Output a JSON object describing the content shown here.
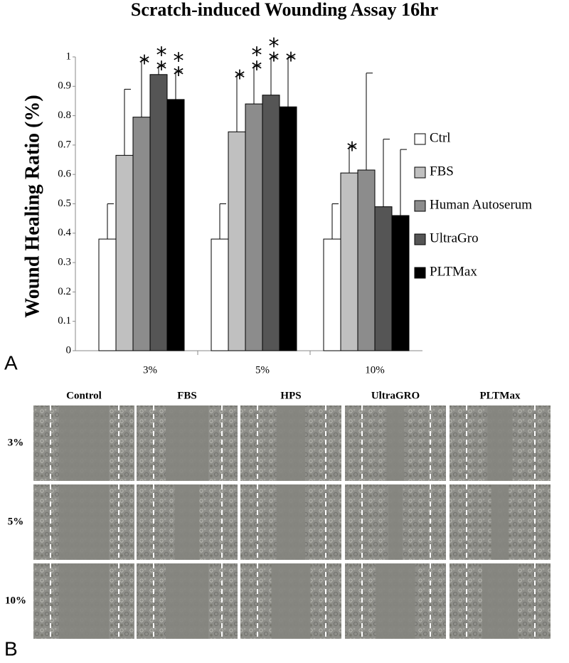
{
  "chart_data": {
    "type": "bar",
    "title": "Scratch-induced Wounding Assay 16hr",
    "y_label": "Wound Healing Ratio (%)",
    "categories": [
      "3%",
      "5%",
      "10%"
    ],
    "series": [
      {
        "name": "Ctrl",
        "color": "#ffffff",
        "values": [
          0.38,
          0.38,
          0.38
        ],
        "errors": [
          0.12,
          0.12,
          0.12
        ],
        "significance": [
          null,
          null,
          null
        ]
      },
      {
        "name": "FBS",
        "color": "#c0c0c0",
        "values": [
          0.665,
          0.745,
          0.605
        ],
        "errors": [
          0.225,
          0.195,
          0.09
        ],
        "significance": [
          null,
          "*",
          "*"
        ]
      },
      {
        "name": "Human Autoserum",
        "color": "#8c8c8c",
        "values": [
          0.795,
          0.84,
          0.615
        ],
        "errors": [
          0.195,
          0.13,
          0.33
        ],
        "significance": [
          "*",
          "**",
          null
        ]
      },
      {
        "name": "UltraGro",
        "color": "#555555",
        "values": [
          0.94,
          0.87,
          0.49
        ],
        "errors": [
          0.03,
          0.13,
          0.23
        ],
        "significance": [
          "**",
          "**",
          null
        ]
      },
      {
        "name": "PLTMax",
        "color": "#000000",
        "values": [
          0.855,
          0.83,
          0.46
        ],
        "errors": [
          0.095,
          0.17,
          0.225
        ],
        "significance": [
          "**",
          "*",
          null
        ]
      }
    ],
    "ylim": [
      0,
      1
    ],
    "yticks": [
      0,
      0.1,
      0.2,
      0.3,
      0.4,
      0.5,
      0.6,
      0.7,
      0.8,
      0.9,
      1
    ],
    "grid": false,
    "legend": "right"
  },
  "panel_labels": [
    "A",
    "B"
  ],
  "micrograph_grid": {
    "columns": [
      "Control",
      "FBS",
      "HPS",
      "UltraGRO",
      "PLTMax"
    ],
    "rows": [
      "3%",
      "5%",
      "10%"
    ]
  }
}
